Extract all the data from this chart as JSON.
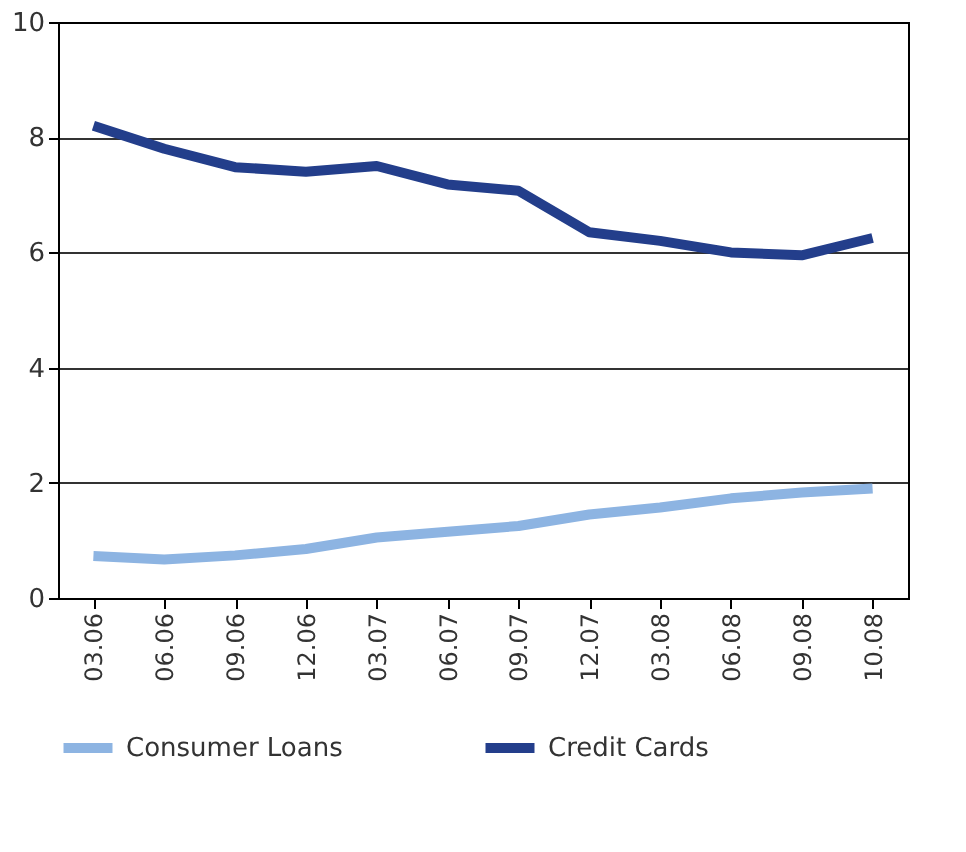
{
  "chart_data": {
    "type": "line",
    "categories": [
      "03.06",
      "06.06",
      "09.06",
      "12.06",
      "03.07",
      "06.07",
      "09.07",
      "12.07",
      "03.08",
      "06.08",
      "09.08",
      "10.08"
    ],
    "series": [
      {
        "name": "Consumer Loans",
        "color": "#8db4e2",
        "values": [
          0.73,
          0.67,
          0.74,
          0.85,
          1.05,
          1.15,
          1.25,
          1.45,
          1.57,
          1.73,
          1.83,
          1.9
        ]
      },
      {
        "name": "Credit Cards",
        "color": "#233e8b",
        "values": [
          8.2,
          7.8,
          7.48,
          7.4,
          7.5,
          7.18,
          7.07,
          6.35,
          6.2,
          6.0,
          5.95,
          6.25
        ]
      }
    ],
    "ylim": [
      0,
      10
    ],
    "yticks": [
      0,
      2,
      4,
      6,
      8,
      10
    ],
    "grid": "y",
    "legend": "bottom",
    "marker": "none",
    "line_style": "solid"
  }
}
